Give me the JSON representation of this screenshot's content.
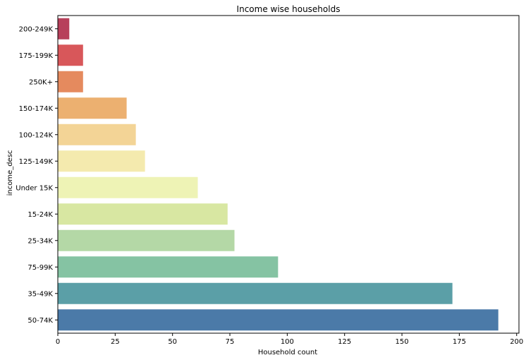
{
  "chart_data": {
    "type": "bar",
    "orientation": "horizontal",
    "title": "Income wise households",
    "xlabel": "Household count",
    "ylabel": "income_desc",
    "xlim": [
      0,
      201
    ],
    "xticks": [
      0,
      25,
      50,
      75,
      100,
      125,
      150,
      175,
      200
    ],
    "grid": false,
    "categories": [
      "200-249K",
      "175-199K",
      "250K+",
      "150-174K",
      "100-124K",
      "125-149K",
      "Under 15K",
      "15-24K",
      "25-34K",
      "75-99K",
      "35-49K",
      "50-74K"
    ],
    "values": [
      5,
      11,
      11,
      30,
      34,
      38,
      61,
      74,
      77,
      96,
      172,
      192
    ],
    "colors": [
      "#b7405b",
      "#d8575a",
      "#e58a5e",
      "#ecb070",
      "#f3d496",
      "#f4eaae",
      "#eef3b5",
      "#d8e7a2",
      "#b4d8a6",
      "#85c3a3",
      "#5b9fa7",
      "#4b7aa8"
    ]
  }
}
